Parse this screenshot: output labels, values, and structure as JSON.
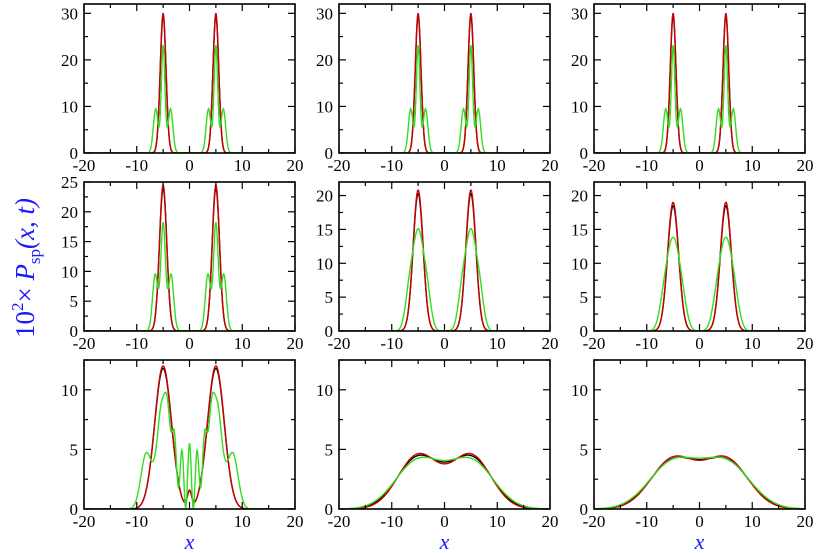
{
  "figure": {
    "ylabel_base": "10",
    "ylabel_exp": "2",
    "ylabel_times": "× ",
    "ylabel_P": "P",
    "ylabel_sub": "sp",
    "ylabel_args": "(x, t)",
    "xlabel": "x"
  },
  "colors": {
    "black": "#000000",
    "red": "#cc0000",
    "green": "#33dd22"
  },
  "chart_data": [
    {
      "type": "line",
      "row": 0,
      "col": 0,
      "xlim": [
        -20,
        20
      ],
      "ylim": [
        0,
        32
      ],
      "xticks": [
        -20,
        -10,
        0,
        10,
        20
      ],
      "yticks": [
        0,
        10,
        20,
        30
      ],
      "xlabel": "",
      "series": [
        {
          "color": "#000000",
          "form": "narrow",
          "peaks": [
            {
              "x0": -5,
              "amp": 29.5,
              "sigma": 0.55
            },
            {
              "x0": 5,
              "amp": 29.5,
              "sigma": 0.55
            }
          ]
        },
        {
          "color": "#cc0000",
          "form": "narrow",
          "peaks": [
            {
              "x0": -5,
              "amp": 30,
              "sigma": 0.55
            },
            {
              "x0": 5,
              "amp": 30,
              "sigma": 0.55
            }
          ]
        },
        {
          "color": "#33dd22",
          "form": "triple",
          "peaks": [
            {
              "x0": -5,
              "amp": 23,
              "sigma": 0.35,
              "side": 9.5,
              "offset": 1.4,
              "sideSigma": 0.45
            },
            {
              "x0": 5,
              "amp": 23,
              "sigma": 0.35,
              "side": 9.5,
              "offset": 1.4,
              "sideSigma": 0.45
            }
          ]
        }
      ]
    },
    {
      "type": "line",
      "row": 0,
      "col": 1,
      "xlim": [
        -20,
        20
      ],
      "ylim": [
        0,
        32
      ],
      "xticks": [
        -20,
        -10,
        0,
        10,
        20
      ],
      "yticks": [
        0,
        10,
        20,
        30
      ],
      "xlabel": "",
      "series": [
        {
          "color": "#000000",
          "form": "narrow",
          "peaks": [
            {
              "x0": -5,
              "amp": 29.5,
              "sigma": 0.55
            },
            {
              "x0": 5,
              "amp": 29.5,
              "sigma": 0.55
            }
          ]
        },
        {
          "color": "#cc0000",
          "form": "narrow",
          "peaks": [
            {
              "x0": -5,
              "amp": 30,
              "sigma": 0.55
            },
            {
              "x0": 5,
              "amp": 30,
              "sigma": 0.55
            }
          ]
        },
        {
          "color": "#33dd22",
          "form": "triple",
          "peaks": [
            {
              "x0": -5,
              "amp": 23,
              "sigma": 0.35,
              "side": 9.5,
              "offset": 1.4,
              "sideSigma": 0.45
            },
            {
              "x0": 5,
              "amp": 23,
              "sigma": 0.35,
              "side": 9.5,
              "offset": 1.4,
              "sideSigma": 0.45
            }
          ]
        }
      ]
    },
    {
      "type": "line",
      "row": 0,
      "col": 2,
      "xlim": [
        -20,
        20
      ],
      "ylim": [
        0,
        32
      ],
      "xticks": [
        -20,
        -10,
        0,
        10,
        20
      ],
      "yticks": [
        0,
        10,
        20,
        30
      ],
      "xlabel": "",
      "series": [
        {
          "color": "#000000",
          "form": "narrow",
          "peaks": [
            {
              "x0": -5,
              "amp": 29.5,
              "sigma": 0.55
            },
            {
              "x0": 5,
              "amp": 29.5,
              "sigma": 0.55
            }
          ]
        },
        {
          "color": "#cc0000",
          "form": "narrow",
          "peaks": [
            {
              "x0": -5,
              "amp": 30,
              "sigma": 0.55
            },
            {
              "x0": 5,
              "amp": 30,
              "sigma": 0.55
            }
          ]
        },
        {
          "color": "#33dd22",
          "form": "triple",
          "peaks": [
            {
              "x0": -5,
              "amp": 23,
              "sigma": 0.35,
              "side": 9.5,
              "offset": 1.4,
              "sideSigma": 0.45
            },
            {
              "x0": 5,
              "amp": 23,
              "sigma": 0.35,
              "side": 9.5,
              "offset": 1.4,
              "sideSigma": 0.45
            }
          ]
        }
      ]
    },
    {
      "type": "line",
      "row": 1,
      "col": 0,
      "xlim": [
        -20,
        20
      ],
      "ylim": [
        0,
        25
      ],
      "xticks": [
        -20,
        -10,
        0,
        10,
        20
      ],
      "yticks": [
        0,
        5,
        10,
        15,
        20,
        25
      ],
      "xlabel": "",
      "series": [
        {
          "color": "#000000",
          "form": "narrow",
          "peaks": [
            {
              "x0": -5,
              "amp": 24,
              "sigma": 0.7
            },
            {
              "x0": 5,
              "amp": 24,
              "sigma": 0.7
            }
          ]
        },
        {
          "color": "#cc0000",
          "form": "narrow",
          "peaks": [
            {
              "x0": -5,
              "amp": 24.5,
              "sigma": 0.7
            },
            {
              "x0": 5,
              "amp": 24.5,
              "sigma": 0.7
            }
          ]
        },
        {
          "color": "#33dd22",
          "form": "triple",
          "peaks": [
            {
              "x0": -5,
              "amp": 18,
              "sigma": 0.45,
              "side": 9.5,
              "offset": 1.5,
              "sideSigma": 0.5
            },
            {
              "x0": 5,
              "amp": 18,
              "sigma": 0.45,
              "side": 9.5,
              "offset": 1.5,
              "sideSigma": 0.5
            }
          ]
        }
      ]
    },
    {
      "type": "line",
      "row": 1,
      "col": 1,
      "xlim": [
        -20,
        20
      ],
      "ylim": [
        0,
        22
      ],
      "xticks": [
        -20,
        -10,
        0,
        10,
        20
      ],
      "yticks": [
        0,
        5,
        10,
        15,
        20
      ],
      "xlabel": "",
      "series": [
        {
          "color": "#000000",
          "form": "narrow",
          "peaks": [
            {
              "x0": -5,
              "amp": 20.3,
              "sigma": 0.95
            },
            {
              "x0": 5,
              "amp": 20.3,
              "sigma": 0.95
            }
          ]
        },
        {
          "color": "#cc0000",
          "form": "narrow",
          "peaks": [
            {
              "x0": -5,
              "amp": 20.8,
              "sigma": 0.95
            },
            {
              "x0": 5,
              "amp": 20.8,
              "sigma": 0.95
            }
          ]
        },
        {
          "color": "#33dd22",
          "form": "triple",
          "peaks": [
            {
              "x0": -5,
              "amp": 13.5,
              "sigma": 0.9,
              "side": 6,
              "offset": 1.6,
              "sideSigma": 0.8
            },
            {
              "x0": 5,
              "amp": 13.5,
              "sigma": 0.9,
              "side": 6,
              "offset": 1.6,
              "sideSigma": 0.8
            }
          ]
        }
      ]
    },
    {
      "type": "line",
      "row": 1,
      "col": 2,
      "xlim": [
        -20,
        20
      ],
      "ylim": [
        0,
        22
      ],
      "xticks": [
        -20,
        -10,
        0,
        10,
        20
      ],
      "yticks": [
        0,
        5,
        10,
        15,
        20
      ],
      "xlabel": "",
      "series": [
        {
          "color": "#000000",
          "form": "narrow",
          "peaks": [
            {
              "x0": -5,
              "amp": 18.5,
              "sigma": 1.05
            },
            {
              "x0": 5,
              "amp": 18.5,
              "sigma": 1.05
            }
          ]
        },
        {
          "color": "#cc0000",
          "form": "narrow",
          "peaks": [
            {
              "x0": -5,
              "amp": 19,
              "sigma": 1.05
            },
            {
              "x0": 5,
              "amp": 19,
              "sigma": 1.05
            }
          ]
        },
        {
          "color": "#33dd22",
          "form": "triple",
          "peaks": [
            {
              "x0": -5,
              "amp": 12.5,
              "sigma": 1.1,
              "side": 4,
              "offset": 1.7,
              "sideSigma": 0.9
            },
            {
              "x0": 5,
              "amp": 12.5,
              "sigma": 1.1,
              "side": 4,
              "offset": 1.7,
              "sideSigma": 0.9
            }
          ]
        }
      ]
    },
    {
      "type": "line",
      "row": 2,
      "col": 0,
      "xlim": [
        -20,
        20
      ],
      "ylim": [
        0,
        12.5
      ],
      "xticks": [
        -20,
        -10,
        0,
        10,
        20
      ],
      "yticks": [
        0,
        5,
        10
      ],
      "xlabel": "x",
      "series": [
        {
          "color": "#000000",
          "form": "wide",
          "peaks": [
            {
              "x0": -5,
              "amp": 11.8,
              "sigma": 1.6
            },
            {
              "x0": 5,
              "amp": 11.8,
              "sigma": 1.6
            }
          ],
          "dip": true
        },
        {
          "color": "#cc0000",
          "form": "wide",
          "peaks": [
            {
              "x0": -5,
              "amp": 12,
              "sigma": 1.6
            },
            {
              "x0": 5,
              "amp": 12,
              "sigma": 1.6
            }
          ],
          "dip": true
        },
        {
          "color": "#33dd22",
          "form": "interference"
        }
      ]
    },
    {
      "type": "line",
      "row": 2,
      "col": 1,
      "xlim": [
        -20,
        20
      ],
      "ylim": [
        0,
        12.5
      ],
      "xticks": [
        -20,
        -10,
        0,
        10,
        20
      ],
      "yticks": [
        0,
        5,
        10
      ],
      "xlabel": "x",
      "series": [
        {
          "color": "#000000",
          "form": "wide",
          "peaks": [
            {
              "x0": -5,
              "amp": 4.3,
              "sigma": 4.0
            },
            {
              "x0": 5,
              "amp": 4.3,
              "sigma": 4.0
            }
          ]
        },
        {
          "color": "#cc0000",
          "form": "wide",
          "peaks": [
            {
              "x0": -5,
              "amp": 4.5,
              "sigma": 3.8
            },
            {
              "x0": 5,
              "amp": 4.5,
              "sigma": 3.8
            }
          ]
        },
        {
          "color": "#33dd22",
          "form": "wide",
          "peaks": [
            {
              "x0": -5,
              "amp": 4.0,
              "sigma": 4.3
            },
            {
              "x0": 5,
              "amp": 4.0,
              "sigma": 4.3
            }
          ]
        }
      ]
    },
    {
      "type": "line",
      "row": 2,
      "col": 2,
      "xlim": [
        -20,
        20
      ],
      "ylim": [
        0,
        12.5
      ],
      "xticks": [
        -20,
        -10,
        0,
        10,
        20
      ],
      "yticks": [
        0,
        5,
        10
      ],
      "xlabel": "x",
      "series": [
        {
          "color": "#000000",
          "form": "wide",
          "peaks": [
            {
              "x0": -5,
              "amp": 3.95,
              "sigma": 4.4
            },
            {
              "x0": 5,
              "amp": 3.95,
              "sigma": 4.4
            }
          ]
        },
        {
          "color": "#cc0000",
          "form": "wide",
          "peaks": [
            {
              "x0": -5,
              "amp": 4.15,
              "sigma": 4.2
            },
            {
              "x0": 5,
              "amp": 4.15,
              "sigma": 4.2
            }
          ]
        },
        {
          "color": "#33dd22",
          "form": "wide",
          "peaks": [
            {
              "x0": -5,
              "amp": 3.85,
              "sigma": 4.6
            },
            {
              "x0": 5,
              "amp": 3.85,
              "sigma": 4.6
            }
          ]
        }
      ]
    }
  ]
}
